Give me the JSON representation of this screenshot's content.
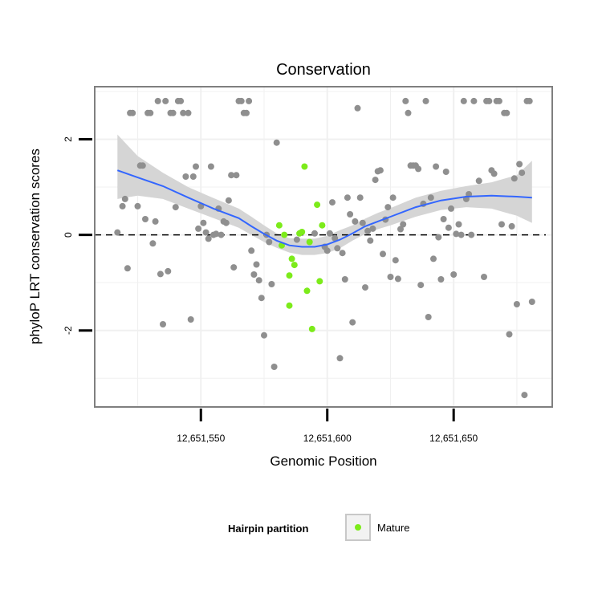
{
  "chart_data": {
    "type": "scatter",
    "title": "Conservation",
    "xlabel": "Genomic Position",
    "ylabel": "phyloP LRT conservation scores",
    "xlim": [
      12651508,
      12651689
    ],
    "ylim": [
      -3.6,
      3.1
    ],
    "x_ticks": [
      12651550,
      12651600,
      12651650
    ],
    "x_tick_labels": [
      "12,651,550",
      "12,651,600",
      "12,651,650"
    ],
    "y_ticks": [
      -2,
      0,
      2
    ],
    "y_tick_labels": [
      "-2",
      "0",
      "2"
    ],
    "reference_line_y": 0,
    "grid": true,
    "legend": {
      "title": "Hairpin partition",
      "position": "bottom",
      "entries": [
        {
          "label": "Mature",
          "color": "#7CEB1A"
        }
      ]
    },
    "colors": {
      "other_points": "#8F8F8F",
      "mature_points": "#7CEB1A",
      "smooth_line": "#3366FF",
      "confidence_band": "#D3D3D3",
      "panel_border": "#7F7F7F",
      "grid": "#F0F0F0"
    },
    "series": [
      {
        "name": "Mature",
        "points": [
          [
            12651581,
            0.2
          ],
          [
            12651582,
            -0.22
          ],
          [
            12651583,
            0.0
          ],
          [
            12651585,
            -0.85
          ],
          [
            12651585,
            -1.48
          ],
          [
            12651586,
            -0.5
          ],
          [
            12651587,
            -0.63
          ],
          [
            12651589,
            0.03
          ],
          [
            12651590,
            0.06
          ],
          [
            12651591,
            1.43
          ],
          [
            12651592,
            -1.17
          ],
          [
            12651593,
            -0.15
          ],
          [
            12651594,
            -1.97
          ],
          [
            12651596,
            0.63
          ],
          [
            12651597,
            -0.97
          ],
          [
            12651598,
            0.2
          ]
        ]
      },
      {
        "points": [
          [
            12651517,
            0.05
          ],
          [
            12651519,
            0.6
          ],
          [
            12651520,
            0.75
          ],
          [
            12651521,
            -0.7
          ],
          [
            12651522,
            2.55
          ],
          [
            12651523,
            2.55
          ],
          [
            12651525,
            0.6
          ],
          [
            12651526,
            1.45
          ],
          [
            12651527,
            1.45
          ],
          [
            12651528,
            0.33
          ],
          [
            12651529,
            2.55
          ],
          [
            12651530,
            2.55
          ],
          [
            12651531,
            -0.18
          ],
          [
            12651532,
            0.28
          ],
          [
            12651533,
            2.8
          ],
          [
            12651534,
            -0.82
          ],
          [
            12651535,
            -1.87
          ],
          [
            12651536,
            2.8
          ],
          [
            12651537,
            -0.76
          ],
          [
            12651538,
            2.55
          ],
          [
            12651539,
            2.55
          ],
          [
            12651540,
            0.58
          ],
          [
            12651541,
            2.8
          ],
          [
            12651542,
            2.8
          ],
          [
            12651543,
            2.55
          ],
          [
            12651544,
            1.22
          ],
          [
            12651545,
            2.55
          ],
          [
            12651546,
            -1.77
          ],
          [
            12651547,
            1.22
          ],
          [
            12651548,
            1.43
          ],
          [
            12651549,
            0.13
          ],
          [
            12651550,
            0.6
          ],
          [
            12651551,
            0.25
          ],
          [
            12651552,
            0.05
          ],
          [
            12651553,
            -0.08
          ],
          [
            12651554,
            1.43
          ],
          [
            12651555,
            0.0
          ],
          [
            12651556,
            0.02
          ],
          [
            12651557,
            0.55
          ],
          [
            12651558,
            0.0
          ],
          [
            12651559,
            0.28
          ],
          [
            12651560,
            0.25
          ],
          [
            12651561,
            0.72
          ],
          [
            12651562,
            1.25
          ],
          [
            12651563,
            -0.68
          ],
          [
            12651564,
            1.25
          ],
          [
            12651565,
            2.8
          ],
          [
            12651566,
            2.8
          ],
          [
            12651567,
            2.55
          ],
          [
            12651568,
            2.55
          ],
          [
            12651569,
            2.8
          ],
          [
            12651570,
            -0.33
          ],
          [
            12651571,
            -0.83
          ],
          [
            12651572,
            -0.62
          ],
          [
            12651573,
            -0.95
          ],
          [
            12651574,
            -1.32
          ],
          [
            12651575,
            -2.1
          ],
          [
            12651576,
            0.0
          ],
          [
            12651577,
            -0.15
          ],
          [
            12651578,
            -1.03
          ],
          [
            12651579,
            -2.76
          ],
          [
            12651580,
            1.93
          ],
          [
            12651588,
            -0.1
          ],
          [
            12651595,
            0.03
          ],
          [
            12651599,
            -0.25
          ],
          [
            12651600,
            -0.33
          ],
          [
            12651601,
            0.03
          ],
          [
            12651602,
            0.68
          ],
          [
            12651603,
            -0.07
          ],
          [
            12651604,
            -0.28
          ],
          [
            12651605,
            -2.58
          ],
          [
            12651606,
            -0.38
          ],
          [
            12651607,
            -0.93
          ],
          [
            12651608,
            0.78
          ],
          [
            12651609,
            0.43
          ],
          [
            12651610,
            -1.83
          ],
          [
            12651611,
            0.28
          ],
          [
            12651612,
            2.65
          ],
          [
            12651613,
            0.78
          ],
          [
            12651614,
            0.25
          ],
          [
            12651615,
            -1.1
          ],
          [
            12651616,
            0.08
          ],
          [
            12651617,
            -0.12
          ],
          [
            12651618,
            0.13
          ],
          [
            12651619,
            1.15
          ],
          [
            12651620,
            1.33
          ],
          [
            12651621,
            1.35
          ],
          [
            12651622,
            -0.4
          ],
          [
            12651623,
            0.32
          ],
          [
            12651624,
            0.58
          ],
          [
            12651625,
            -0.88
          ],
          [
            12651626,
            0.78
          ],
          [
            12651627,
            -0.53
          ],
          [
            12651628,
            -0.92
          ],
          [
            12651629,
            0.12
          ],
          [
            12651630,
            0.22
          ],
          [
            12651631,
            2.8
          ],
          [
            12651632,
            2.55
          ],
          [
            12651633,
            1.45
          ],
          [
            12651634,
            1.45
          ],
          [
            12651635,
            1.45
          ],
          [
            12651636,
            1.38
          ],
          [
            12651637,
            -1.05
          ],
          [
            12651638,
            0.65
          ],
          [
            12651639,
            2.8
          ],
          [
            12651640,
            -1.72
          ],
          [
            12651641,
            0.78
          ],
          [
            12651642,
            -0.5
          ],
          [
            12651643,
            1.43
          ],
          [
            12651644,
            -0.05
          ],
          [
            12651645,
            -0.93
          ],
          [
            12651646,
            0.33
          ],
          [
            12651647,
            1.32
          ],
          [
            12651648,
            0.15
          ],
          [
            12651649,
            0.55
          ],
          [
            12651650,
            -0.83
          ],
          [
            12651651,
            0.02
          ],
          [
            12651652,
            0.22
          ],
          [
            12651653,
            0.0
          ],
          [
            12651654,
            2.8
          ],
          [
            12651655,
            0.75
          ],
          [
            12651656,
            0.85
          ],
          [
            12651657,
            0.0
          ],
          [
            12651658,
            2.8
          ],
          [
            12651660,
            1.13
          ],
          [
            12651662,
            -0.88
          ],
          [
            12651663,
            2.8
          ],
          [
            12651664,
            2.8
          ],
          [
            12651665,
            1.35
          ],
          [
            12651666,
            1.28
          ],
          [
            12651667,
            2.8
          ],
          [
            12651668,
            2.8
          ],
          [
            12651669,
            0.22
          ],
          [
            12651670,
            2.55
          ],
          [
            12651671,
            2.55
          ],
          [
            12651672,
            -2.08
          ],
          [
            12651673,
            0.18
          ],
          [
            12651674,
            1.18
          ],
          [
            12651675,
            -1.45
          ],
          [
            12651676,
            1.48
          ],
          [
            12651677,
            1.3
          ],
          [
            12651678,
            -3.35
          ],
          [
            12651679,
            2.8
          ],
          [
            12651680,
            2.8
          ],
          [
            12651681,
            -1.4
          ]
        ]
      }
    ],
    "smooth": {
      "method": "loess",
      "x": [
        12651517,
        12651525,
        12651535,
        12651545,
        12651555,
        12651565,
        12651570,
        12651575,
        12651580,
        12651585,
        12651590,
        12651595,
        12651600,
        12651605,
        12651610,
        12651615,
        12651620,
        12651625,
        12651635,
        12651645,
        12651655,
        12651665,
        12651675,
        12651681
      ],
      "y": [
        1.35,
        1.2,
        1.02,
        0.78,
        0.55,
        0.35,
        0.18,
        0.02,
        -0.12,
        -0.22,
        -0.25,
        -0.25,
        -0.2,
        -0.1,
        0.03,
        0.18,
        0.28,
        0.38,
        0.58,
        0.72,
        0.8,
        0.82,
        0.8,
        0.78
      ],
      "lower": [
        0.75,
        0.82,
        0.75,
        0.55,
        0.35,
        0.15,
        0.0,
        -0.15,
        -0.27,
        -0.37,
        -0.42,
        -0.42,
        -0.38,
        -0.28,
        -0.12,
        0.02,
        0.12,
        0.2,
        0.38,
        0.52,
        0.58,
        0.55,
        0.4,
        0.25
      ],
      "upper": [
        2.1,
        1.65,
        1.3,
        1.0,
        0.77,
        0.55,
        0.38,
        0.2,
        0.03,
        -0.07,
        -0.08,
        -0.08,
        -0.02,
        0.1,
        0.2,
        0.34,
        0.46,
        0.56,
        0.78,
        0.92,
        1.02,
        1.1,
        1.25,
        1.55
      ]
    }
  }
}
